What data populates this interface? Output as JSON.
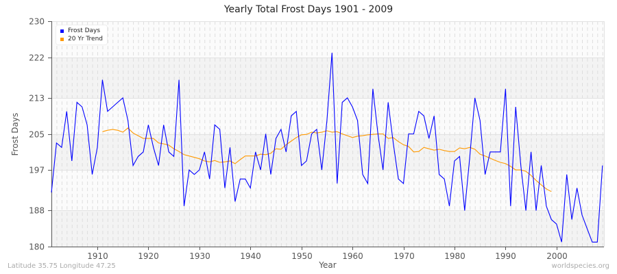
{
  "chart_data": {
    "type": "line",
    "title": "Yearly Total Frost Days 1901 - 2009",
    "xlabel": "Year",
    "ylabel": "Frost Days",
    "ylim": [
      180,
      230
    ],
    "xlim": [
      1901,
      2009
    ],
    "yticks": [
      180,
      188,
      197,
      205,
      213,
      222,
      230
    ],
    "xticks": [
      1910,
      1920,
      1930,
      1940,
      1950,
      1960,
      1970,
      1980,
      1990,
      2000
    ],
    "grid": true,
    "legend_position": "top-left",
    "series": [
      {
        "name": "Frost Days",
        "color": "#0000ff",
        "x_start": 1901,
        "values": [
          192,
          203,
          202,
          210,
          199,
          212,
          211,
          207,
          196,
          202,
          217,
          210,
          211,
          212,
          213,
          208,
          198,
          200,
          201,
          207,
          202,
          198,
          207,
          201,
          200,
          217,
          189,
          197,
          196,
          197,
          201,
          195,
          207,
          206,
          193,
          202,
          190,
          195,
          195,
          193,
          201,
          197,
          205,
          196,
          204,
          206,
          201,
          209,
          210,
          198,
          199,
          205,
          206,
          197,
          208,
          223,
          194,
          212,
          213,
          211,
          208,
          196,
          194,
          215,
          205,
          197,
          212,
          203,
          195,
          194,
          205,
          205,
          210,
          209,
          204,
          209,
          196,
          195,
          189,
          199,
          200,
          188,
          200,
          213,
          208,
          196,
          201,
          201,
          201,
          215,
          189,
          211,
          198,
          188,
          201,
          188,
          198,
          189,
          186,
          185,
          181,
          196,
          186,
          193,
          187,
          184,
          181,
          181,
          198
        ]
      },
      {
        "name": "20 Yr Trend",
        "color": "#ff9900",
        "x_start": 1911,
        "values": [
          205.5,
          205.8,
          206.0,
          205.8,
          205.4,
          206.3,
          205.2,
          204.6,
          204.0,
          204.0,
          204.0,
          203.0,
          202.8,
          202.5,
          201.7,
          201.1,
          200.4,
          200.1,
          199.8,
          199.5,
          199.0,
          198.8,
          199.1,
          198.7,
          198.8,
          199.0,
          198.4,
          199.3,
          200.1,
          200.1,
          200.1,
          200.5,
          200.4,
          200.7,
          201.7,
          201.6,
          202.6,
          203.4,
          204.2,
          204.8,
          204.9,
          205.4,
          205.2,
          205.4,
          205.7,
          205.4,
          205.5,
          205.0,
          204.6,
          204.2,
          204.5,
          204.6,
          204.8,
          204.9,
          205.0,
          205.0,
          204.0,
          204.2,
          203.3,
          202.6,
          202.2,
          201.0,
          201.1,
          202.0,
          201.7,
          201.4,
          201.6,
          201.3,
          201.1,
          201.1,
          201.9,
          201.7,
          202.0,
          201.6,
          200.5,
          200.1,
          199.6,
          199.1,
          198.7,
          198.4,
          197.8,
          197.0,
          197.0,
          196.7,
          195.8,
          194.7,
          193.7,
          192.8,
          192.2
        ]
      }
    ]
  },
  "labels": {
    "title": "Yearly Total Frost Days 1901 - 2009",
    "xlabel": "Year",
    "ylabel": "Frost Days",
    "legend": [
      "Frost Days",
      "20 Yr Trend"
    ],
    "footer_left": "Latitude 35.75 Longitude 47.25",
    "footer_right": "worldspecies.org"
  },
  "colors": {
    "frost_days": "#0000ff",
    "trend": "#ff9900",
    "band_light": "#fbfbfb",
    "band_dark": "#f3f3f3",
    "axis": "#555555"
  }
}
